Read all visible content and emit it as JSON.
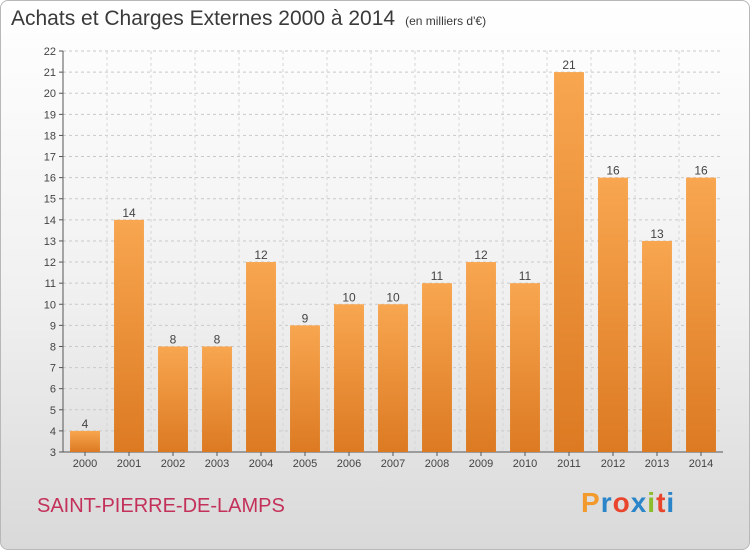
{
  "header": {
    "title": "Achats et Charges Externes 2000 à 2014",
    "unit": "(en milliers d'€)"
  },
  "footer": {
    "town": "SAINT-PIERRE-DE-LAMPS",
    "logo_text": "Proxiti"
  },
  "colors": {
    "bar_light": "#f8a650",
    "bar_dark": "#dc7a22",
    "town": "#c3315a",
    "logo": [
      "#f29a2b",
      "#2b86c9",
      "#e8452c",
      "#2b86c9",
      "#8bbd2a",
      "#e8452c",
      "#2b86c9"
    ]
  },
  "chart_data": {
    "type": "bar",
    "categories": [
      "2000",
      "2001",
      "2002",
      "2003",
      "2004",
      "2005",
      "2006",
      "2007",
      "2008",
      "2009",
      "2010",
      "2011",
      "2012",
      "2013",
      "2014"
    ],
    "values": [
      4,
      14,
      8,
      8,
      12,
      9,
      10,
      10,
      11,
      12,
      11,
      21,
      16,
      13,
      16
    ],
    "title": "Achats et Charges Externes 2000 à 2014",
    "xlabel": "",
    "ylabel": "",
    "ylim": [
      3,
      22
    ],
    "yticks": [
      3,
      4,
      5,
      6,
      7,
      8,
      9,
      10,
      11,
      12,
      13,
      14,
      15,
      16,
      17,
      18,
      19,
      20,
      21,
      22
    ],
    "grid": true,
    "data_labels": true,
    "legend": "none"
  }
}
